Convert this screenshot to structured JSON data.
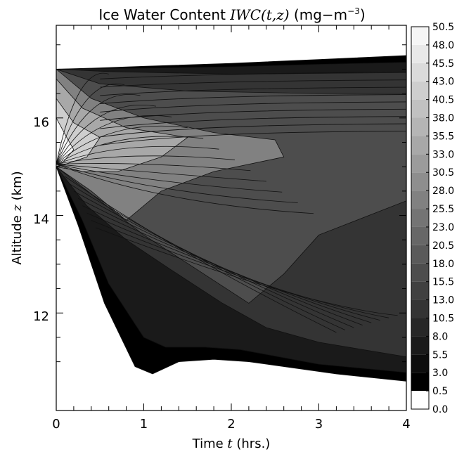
{
  "chart_data": {
    "type": "heatmap",
    "title": {
      "prefix": "Ice Water Content ",
      "math": "IWC(t,z)",
      "unit_open": " (mg−m",
      "unit_sup": "−3",
      "unit_close": ")"
    },
    "xlabel": {
      "prefix": "Time ",
      "var": "t",
      "suffix": " (hrs.)"
    },
    "ylabel": {
      "prefix": "Altitude ",
      "var": "z",
      "suffix": " (km)"
    },
    "xlim": [
      0,
      4
    ],
    "ylim": [
      10,
      17.9
    ],
    "x_ticks": [
      "0",
      "1",
      "2",
      "3",
      "4"
    ],
    "y_ticks": [
      "12",
      "14",
      "16"
    ],
    "y_tick_values": [
      12,
      14,
      16
    ],
    "colorbar": {
      "levels": [
        0.0,
        0.5,
        3.0,
        5.5,
        8.0,
        10.5,
        13.0,
        15.5,
        18.0,
        20.5,
        23.0,
        25.5,
        28.0,
        30.5,
        33.0,
        35.5,
        38.0,
        40.5,
        43.0,
        45.5,
        48.0,
        50.5
      ],
      "labels": [
        "0.0",
        "0.5",
        "3.0",
        "5.5",
        "8.0",
        "10.5",
        "13.0",
        "15.5",
        "18.0",
        "20.5",
        "23.0",
        "25.5",
        "28.0",
        "30.5",
        "33.0",
        "35.5",
        "38.0",
        "40.5",
        "43.0",
        "45.5",
        "48.0",
        "50.5"
      ]
    },
    "colors": {
      "background": "#ffffff",
      "frame": "#000000",
      "contour_line": "#111111",
      "lowest_fill": "#000000",
      "highest_fill": "#ffffff"
    }
  }
}
